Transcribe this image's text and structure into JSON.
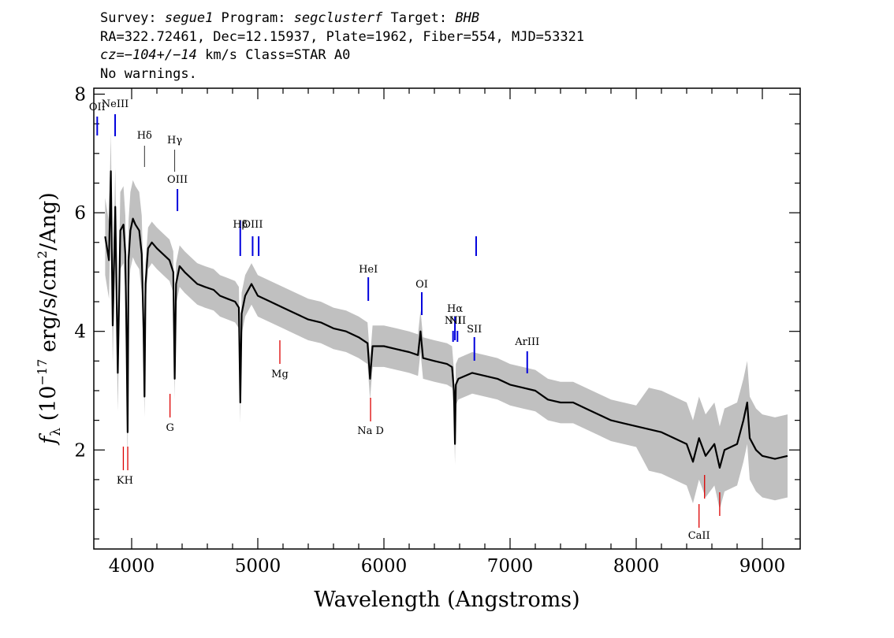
{
  "header": {
    "line1": {
      "survey_label": "Survey: ",
      "survey": "segue1",
      "program_label": " Program: ",
      "program": "segclusterf",
      "target_label": " Target: ",
      "target": "BHB"
    },
    "line2": "RA=322.72461, Dec=12.15937, Plate=1962, Fiber=554, MJD=53321",
    "line3": {
      "cz_label": "cz=",
      "cz": "−104+/−14",
      "units_class": " km/s Class=STAR A0"
    },
    "line4": "No warnings."
  },
  "chart_data": {
    "type": "line",
    "xlabel": "Wavelength (Angstroms)",
    "ylabel_prefix": "f",
    "ylabel_subscript": "λ",
    "ylabel_rest": " (10",
    "ylabel_exp": "−17",
    "ylabel_units": " erg/s/cm",
    "ylabel_exp2": "2",
    "ylabel_end": "/Ang)",
    "xlim": [
      3700,
      9300
    ],
    "ylim": [
      0.33,
      8.1
    ],
    "x_ticks": [
      4000,
      5000,
      6000,
      7000,
      8000,
      9000
    ],
    "x_tick_labels": [
      "4000",
      "5000",
      "6000",
      "7000",
      "8000",
      "9000"
    ],
    "y_ticks": [
      2,
      4,
      6,
      8
    ],
    "y_tick_labels": [
      "2",
      "4",
      "6",
      "8"
    ],
    "grid": false,
    "colors": {
      "flux": "#000000",
      "error_band": "#c0c0c0",
      "emission_marker": "#0000dd",
      "absorption_marker": "#dd0000"
    },
    "series": [
      {
        "name": "",
        "x": [
          3790,
          3820,
          3835,
          3850,
          3870,
          3890,
          3910,
          3935,
          3950,
          3960,
          3968,
          3975,
          3990,
          4010,
          4030,
          4060,
          4080,
          4095,
          4102,
          4110,
          4130,
          4160,
          4200,
          4250,
          4300,
          4330,
          4341,
          4352,
          4380,
          4420,
          4470,
          4520,
          4580,
          4650,
          4700,
          4760,
          4820,
          4850,
          4861,
          4872,
          4900,
          4950,
          5000,
          5100,
          5200,
          5300,
          5400,
          5500,
          5600,
          5700,
          5800,
          5870,
          5890,
          5910,
          6000,
          6100,
          6200,
          6270,
          6290,
          6310,
          6400,
          6500,
          6540,
          6555,
          6563,
          6570,
          6590,
          6700,
          6800,
          6900,
          7000,
          7100,
          7200,
          7300,
          7400,
          7500,
          7600,
          7700,
          7800,
          7900,
          8000,
          8100,
          8200,
          8300,
          8400,
          8450,
          8498,
          8550,
          8620,
          8662,
          8700,
          8800,
          8850,
          8880,
          8900,
          8950,
          9000,
          9100,
          9200
        ],
        "y": [
          5.6,
          5.2,
          6.7,
          4.1,
          6.1,
          3.3,
          5.7,
          5.8,
          5.3,
          3.8,
          2.3,
          5.2,
          5.7,
          5.9,
          5.8,
          5.7,
          5.3,
          4.0,
          2.9,
          4.8,
          5.4,
          5.5,
          5.4,
          5.3,
          5.2,
          5.0,
          3.2,
          4.8,
          5.1,
          5.0,
          4.9,
          4.8,
          4.75,
          4.7,
          4.6,
          4.55,
          4.5,
          4.4,
          2.8,
          4.3,
          4.6,
          4.8,
          4.6,
          4.5,
          4.4,
          4.3,
          4.2,
          4.15,
          4.05,
          4.0,
          3.9,
          3.8,
          3.2,
          3.75,
          3.75,
          3.7,
          3.65,
          3.6,
          4.0,
          3.55,
          3.5,
          3.45,
          3.4,
          3.0,
          2.1,
          3.1,
          3.2,
          3.3,
          3.25,
          3.2,
          3.1,
          3.05,
          3.0,
          2.85,
          2.8,
          2.8,
          2.7,
          2.6,
          2.5,
          2.45,
          2.4,
          2.35,
          2.3,
          2.2,
          2.1,
          1.8,
          2.2,
          1.9,
          2.1,
          1.7,
          2.0,
          2.1,
          2.5,
          2.8,
          2.2,
          2.0,
          1.9,
          1.85,
          1.9
        ]
      }
    ],
    "emission_lines": [
      {
        "label": "OII",
        "wave": 3727
      },
      {
        "label": "NeIII",
        "wave": 3869
      },
      {
        "label": "OΙΙΙ",
        "wave": 4363
      },
      {
        "label": "Hβ",
        "wave": 4861
      },
      {
        "label": "OIII",
        "wave": 4959
      },
      {
        "label": "",
        "wave": 5007
      },
      {
        "label": "HeI",
        "wave": 5876
      },
      {
        "label": "OI",
        "wave": 6300
      },
      {
        "label": "NII",
        "wave": 6548
      },
      {
        "label": "Hα",
        "wave": 6563
      },
      {
        "label": "NII",
        "wave": 6583
      },
      {
        "label": "SII",
        "wave": 6717
      },
      {
        "label": "",
        "wave": 6731
      },
      {
        "label": "ArIII",
        "wave": 7136
      }
    ],
    "balmer_marks": [
      {
        "label": "Hδ",
        "wave": 4102
      },
      {
        "label": "Hγ",
        "wave": 4341
      }
    ],
    "absorption_lines": [
      {
        "label": "KH",
        "wave": 3934
      },
      {
        "label": "",
        "wave": 3969
      },
      {
        "label": "G",
        "wave": 4304
      },
      {
        "label": "Mg",
        "wave": 5175
      },
      {
        "label": "Na D",
        "wave": 5894
      },
      {
        "label": "CaII",
        "wave": 8498
      },
      {
        "label": "",
        "wave": 8542
      },
      {
        "label": "",
        "wave": 8662
      }
    ]
  }
}
